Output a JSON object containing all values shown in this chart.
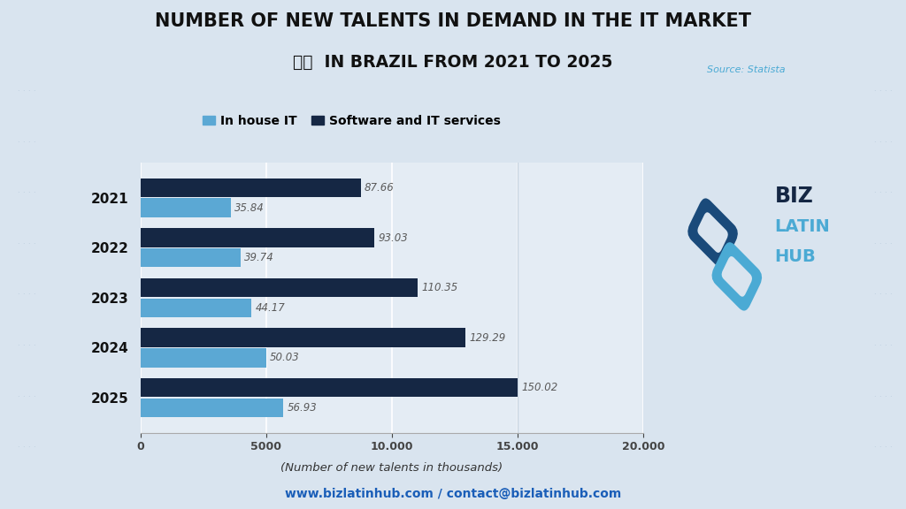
{
  "title_line1": "NUMBER OF NEW TALENTS IN DEMAND IN THE IT MARKET",
  "title_line2": "IN BRAZIL FROM 2021 TO 2025",
  "source": "Source: Statista",
  "years": [
    "2021",
    "2022",
    "2023",
    "2024",
    "2025"
  ],
  "in_house_it": [
    3584,
    3974,
    4417,
    5003,
    5693
  ],
  "in_house_labels": [
    "35.84",
    "39.74",
    "44.17",
    "50.03",
    "56.93"
  ],
  "software_it": [
    8766,
    9303,
    11035,
    12929,
    15002
  ],
  "software_labels": [
    "87.66",
    "93.03",
    "110.35",
    "129.29",
    "150.02"
  ],
  "color_in_house": "#5ba8d4",
  "color_software": "#152744",
  "xlabel": "(Number of new talents in thousands)",
  "legend_in_house": "In house IT",
  "legend_software": "Software and IT services",
  "xlim": [
    0,
    20000
  ],
  "xticks": [
    0,
    5000,
    10000,
    15000,
    20000
  ],
  "xtick_labels": [
    "0",
    "5000",
    "10.000",
    "15.000",
    "20.000"
  ],
  "footer": "www.bizlatinhub.com / contact@bizlatinhub.com",
  "bg_color": "#d9e4ef",
  "plot_bg_color": "#e4ecf4",
  "biz_color": "#152744",
  "latin_hub_color": "#4baad4",
  "source_color": "#4baad4",
  "footer_color": "#1a5eb8",
  "label_color": "#5a5a5a",
  "year_label_color": "#111111",
  "grid_color": "#ffffff",
  "vline_color": "#c8d4e0"
}
